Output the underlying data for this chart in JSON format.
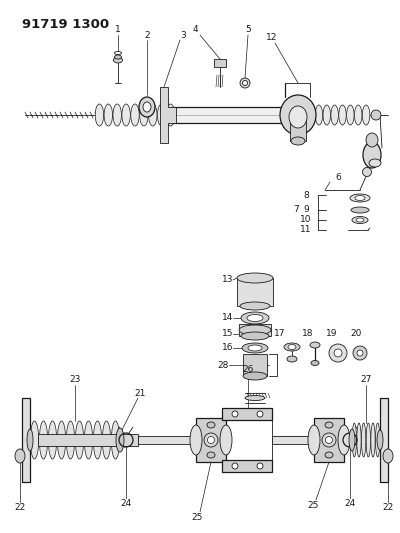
{
  "title": "91719 1300",
  "bg_color": "#ffffff",
  "line_color": "#1a1a1a",
  "fig_width": 4.0,
  "fig_height": 5.33,
  "dpi": 100,
  "lw_thin": 0.6,
  "lw_med": 0.9,
  "lw_thick": 1.3,
  "label_fontsize": 6.5,
  "title_fontsize": 9.5
}
